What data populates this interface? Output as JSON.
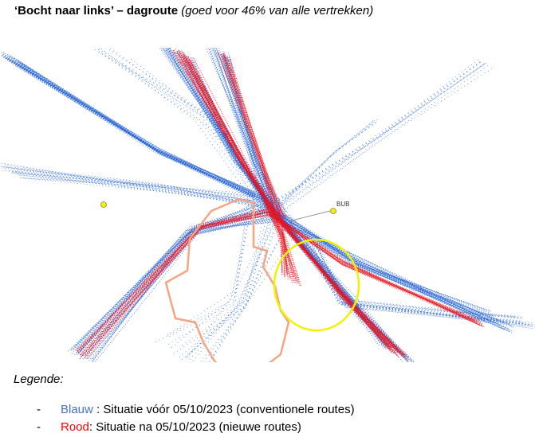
{
  "header": {
    "title": "‘Bocht naar links’ – dagroute",
    "subtitle": "(goed voor 46% van alle vertrekken)"
  },
  "map": {
    "beacon_label": "BUB"
  },
  "legend": {
    "heading": "Legende:",
    "items": [
      {
        "bullet": "-",
        "label": "Blauw",
        "text": " : Situatie vóór 05/10/2023 (conventionele routes)"
      },
      {
        "bullet": "-",
        "label": "Rood",
        "text": ": Situatie na 05/10/2023 (nieuwe routes)"
      }
    ]
  }
}
